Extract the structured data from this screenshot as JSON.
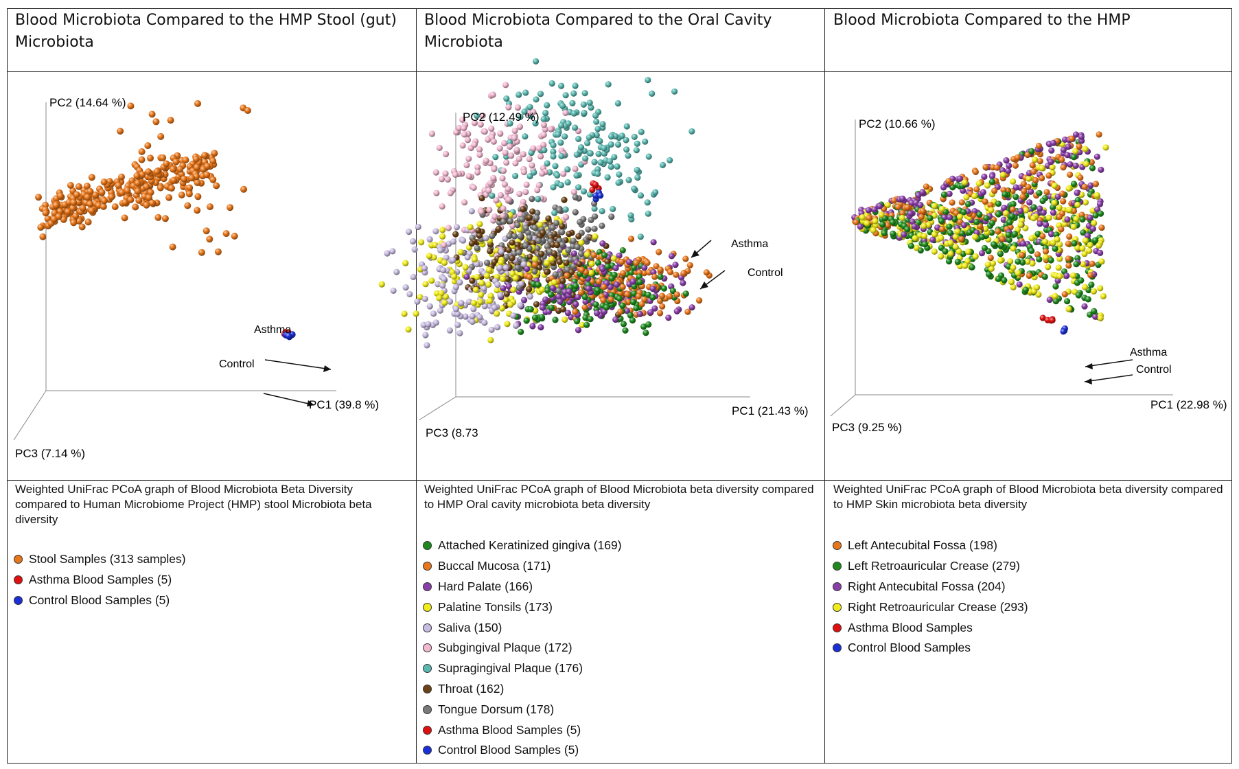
{
  "colors": {
    "stool": "#e8761a",
    "asthma": "#e01010",
    "control": "#1a2fd6",
    "attached": "#1e8a1e",
    "buccal": "#e8761a",
    "hard_palate": "#8a3fa8",
    "palatine": "#f0ec1a",
    "saliva": "#c8bce0",
    "subgingival": "#f2b8d0",
    "supragingival": "#5ab8b0",
    "throat": "#6b4218",
    "tongue": "#7a7a7a"
  },
  "panels": [
    {
      "title": "Blood Microbiota Compared to the HMP Stool (gut) Microbiota",
      "caption": "Weighted UniFrac PCoA graph of Blood Microbiota Beta Diversity compared to Human Microbiome Project (HMP) stool Microbiota beta diversity",
      "legend": [
        {
          "label": "Stool Samples (313 samples)",
          "color": "#e8761a"
        },
        {
          "label": "Asthma Blood Samples (5)",
          "color": "#e01010"
        },
        {
          "label": "Control Blood Samples (5)",
          "color": "#1a2fd6"
        }
      ]
    },
    {
      "title": "Blood Microbiota Compared to the Oral Cavity Microbiota",
      "caption": "Weighted UniFrac PCoA graph of Blood Microbiota beta diversity compared to HMP Oral cavity microbiota beta diversity",
      "legend": [
        {
          "label": "Attached Keratinized gingiva (169)",
          "color": "#1e8a1e"
        },
        {
          "label": "Buccal Mucosa (171)",
          "color": "#e8761a"
        },
        {
          "label": "Hard Palate (166)",
          "color": "#8a3fa8"
        },
        {
          "label": "Palatine Tonsils (173)",
          "color": "#f0ec1a"
        },
        {
          "label": "Saliva (150)",
          "color": "#c8bce0"
        },
        {
          "label": "Subgingival Plaque (172)",
          "color": "#f2b8d0"
        },
        {
          "label": "Supragingival Plaque (176)",
          "color": "#5ab8b0"
        },
        {
          "label": "Throat (162)",
          "color": "#6b4218"
        },
        {
          "label": "Tongue Dorsum (178)",
          "color": "#7a7a7a"
        },
        {
          "label": "Asthma Blood Samples (5)",
          "color": "#e01010"
        },
        {
          "label": "Control Blood Samples (5)",
          "color": "#1a2fd6"
        }
      ]
    },
    {
      "title": "Blood Microbiota Compared to the HMP",
      "caption": "Weighted UniFrac PCoA graph of Blood Microbiota beta diversity compared to HMP Skin microbiota beta diversity",
      "legend": [
        {
          "label": "Left Antecubital Fossa (198)",
          "color": "#e8761a"
        },
        {
          "label": "Left Retroauricular Crease (279)",
          "color": "#1e8a1e"
        },
        {
          "label": "Right Antecubital Fossa (204)",
          "color": "#8a3fa8"
        },
        {
          "label": "Right Retroauricular Crease (293)",
          "color": "#f0ec1a"
        },
        {
          "label": "Asthma Blood Samples",
          "color": "#e01010"
        },
        {
          "label": "Control Blood Samples",
          "color": "#1a2fd6"
        }
      ]
    }
  ],
  "chart_data": [
    {
      "type": "scatter",
      "title": "Blood Microbiota Compared to the HMP Stool (gut) Microbiota",
      "axes": {
        "pc1": "PC1 (39.8 %)",
        "pc2": "PC2 (14.64 %)",
        "pc3": "PC3 (7.14 %)"
      },
      "annotations": [
        "Asthma",
        "Control"
      ],
      "series": [
        {
          "name": "Stool Samples (313 samples)",
          "key": "stool",
          "n": 313
        },
        {
          "name": "Asthma Blood Samples (5)",
          "key": "asthma",
          "n": 5
        },
        {
          "name": "Control Blood Samples (5)",
          "key": "control",
          "n": 5
        }
      ]
    },
    {
      "type": "scatter",
      "title": "Blood Microbiota Compared to the Oral Cavity Microbiota",
      "axes": {
        "pc1": "PC1 (21.43 %)",
        "pc2": "PC2 (12.49 %)",
        "pc3": "PC3 (8.73"
      },
      "annotations": [
        "Asthma",
        "Control"
      ],
      "series": [
        {
          "name": "Attached Keratinized gingiva (169)",
          "key": "attached",
          "n": 169
        },
        {
          "name": "Buccal Mucosa (171)",
          "key": "buccal",
          "n": 171
        },
        {
          "name": "Hard Palate (166)",
          "key": "hard_palate",
          "n": 166
        },
        {
          "name": "Palatine Tonsils (173)",
          "key": "palatine",
          "n": 173
        },
        {
          "name": "Saliva (150)",
          "key": "saliva",
          "n": 150
        },
        {
          "name": "Subgingival Plaque (172)",
          "key": "subgingival",
          "n": 172
        },
        {
          "name": "Supragingival Plaque (176)",
          "key": "supragingival",
          "n": 176
        },
        {
          "name": "Throat (162)",
          "key": "throat",
          "n": 162
        },
        {
          "name": "Tongue Dorsum (178)",
          "key": "tongue",
          "n": 178
        },
        {
          "name": "Asthma Blood Samples (5)",
          "key": "asthma",
          "n": 5
        },
        {
          "name": "Control Blood Samples (5)",
          "key": "control",
          "n": 5
        }
      ]
    },
    {
      "type": "scatter",
      "title": "Blood Microbiota Compared to the HMP",
      "axes": {
        "pc1": "PC1 (22.98 %)",
        "pc2": "PC2 (10.66 %)",
        "pc3": "PC3 (9.25 %)"
      },
      "annotations": [
        "Asthma",
        "Control"
      ],
      "series": [
        {
          "name": "Left Antecubital Fossa (198)",
          "key": "stool",
          "n": 198
        },
        {
          "name": "Left Retroauricular Crease (279)",
          "key": "attached",
          "n": 279
        },
        {
          "name": "Right Antecubital Fossa (204)",
          "key": "hard_palate",
          "n": 204
        },
        {
          "name": "Right Retroauricular Crease (293)",
          "key": "palatine",
          "n": 293
        },
        {
          "name": "Asthma Blood Samples",
          "key": "asthma",
          "n": 5
        },
        {
          "name": "Control Blood Samples",
          "key": "control",
          "n": 5
        }
      ]
    }
  ]
}
